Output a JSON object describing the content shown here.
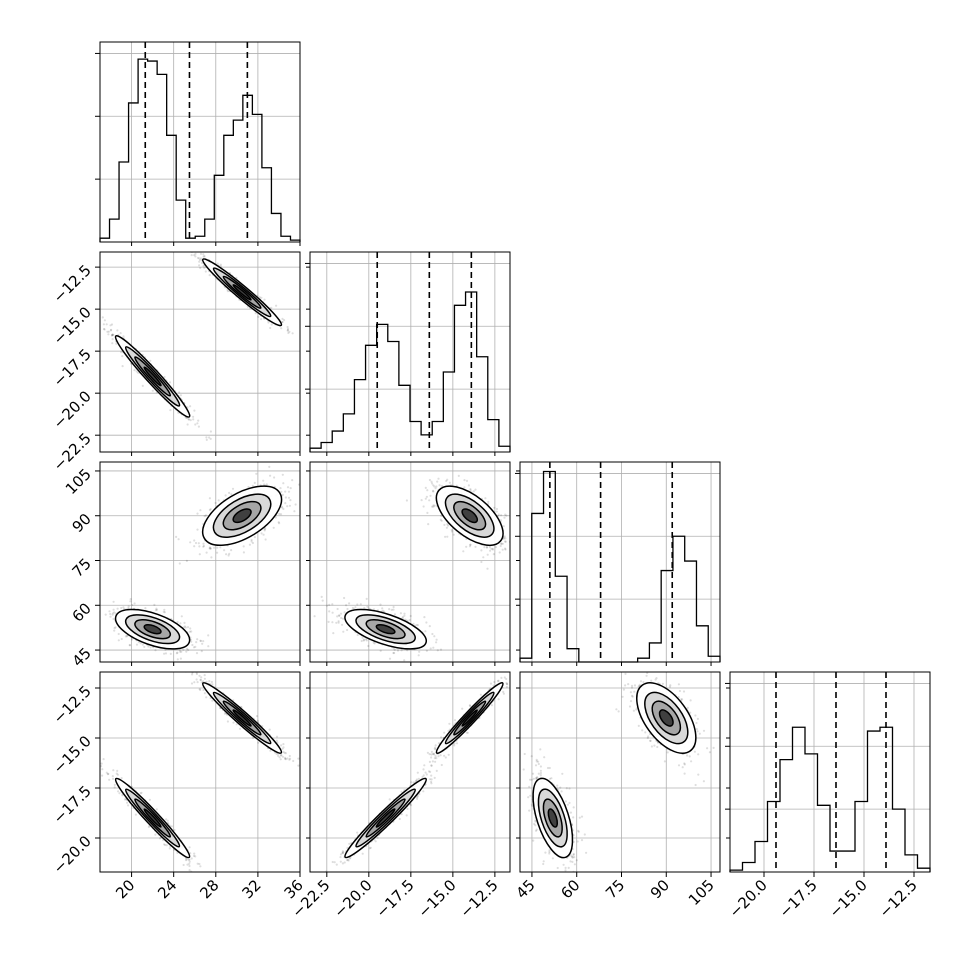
{
  "chart_data": {
    "type": "corner",
    "grid": true,
    "parameters": [
      {
        "range": [
          17,
          36
        ],
        "ticks": [
          20,
          24,
          28,
          32,
          36
        ],
        "tick_labels": [
          "20",
          "24",
          "28",
          "32",
          "36"
        ],
        "quantiles": [
          21.3,
          25.5,
          31.0
        ],
        "hist": [
          0.02,
          0.12,
          0.42,
          0.73,
          0.96,
          0.95,
          0.88,
          0.56,
          0.22,
          0.02,
          0.03,
          0.12,
          0.35,
          0.56,
          0.64,
          0.77,
          0.67,
          0.39,
          0.15,
          0.03,
          0.01
        ],
        "modes": [
          {
            "mean": 22.0,
            "sd": 1.6
          },
          {
            "mean": 30.5,
            "sd": 1.7
          }
        ]
      },
      {
        "range": [
          -23.5,
          -11.6
        ],
        "ticks": [
          -22.5,
          -20.0,
          -17.5,
          -15.0,
          -12.5
        ],
        "tick_labels": [
          "−22.5",
          "−20.0",
          "−17.5",
          "−15.0",
          "−12.5"
        ],
        "quantiles": [
          -19.5,
          -16.4,
          -13.9
        ],
        "hist": [
          0.02,
          0.05,
          0.11,
          0.2,
          0.38,
          0.56,
          0.67,
          0.58,
          0.35,
          0.16,
          0.09,
          0.16,
          0.42,
          0.77,
          0.84,
          0.5,
          0.17,
          0.03
        ],
        "modes": [
          {
            "mean": -19.0,
            "sd": 1.1
          },
          {
            "mean": -14.0,
            "sd": 0.9
          }
        ]
      },
      {
        "range": [
          41,
          108
        ],
        "ticks": [
          45,
          60,
          75,
          90,
          105
        ],
        "tick_labels": [
          "45",
          "60",
          "75",
          "90",
          "105"
        ],
        "quantiles": [
          51,
          68,
          92
        ],
        "hist": [
          0.02,
          0.78,
          1.0,
          0.45,
          0.07,
          0.0,
          0.0,
          0.0,
          0.0,
          0.0,
          0.02,
          0.1,
          0.48,
          0.66,
          0.53,
          0.19,
          0.03
        ],
        "modes": [
          {
            "mean": 52.0,
            "sd": 3.0
          },
          {
            "mean": 90.0,
            "sd": 4.5
          }
        ]
      },
      {
        "range": [
          -21.7,
          -11.7
        ],
        "ticks": [
          -20.0,
          -17.5,
          -15.0,
          -12.5
        ],
        "tick_labels": [
          "−20.0",
          "−17.5",
          "−15.0",
          "−12.5"
        ],
        "quantiles": [
          -19.4,
          -16.4,
          -13.9
        ],
        "hist": [
          0.01,
          0.05,
          0.16,
          0.37,
          0.59,
          0.76,
          0.62,
          0.35,
          0.11,
          0.11,
          0.37,
          0.74,
          0.76,
          0.33,
          0.09,
          0.02
        ],
        "modes": [
          {
            "mean": -19.0,
            "sd": 0.9
          },
          {
            "mean": -14.0,
            "sd": 0.8
          }
        ]
      }
    ],
    "pairs": [
      {
        "row": 1,
        "col": 0,
        "correlations": [
          -0.97,
          -0.97
        ]
      },
      {
        "row": 2,
        "col": 0,
        "correlations": [
          -0.55,
          0.55
        ]
      },
      {
        "row": 2,
        "col": 1,
        "correlations": [
          -0.6,
          -0.6
        ]
      },
      {
        "row": 3,
        "col": 0,
        "correlations": [
          -0.97,
          -0.97
        ]
      },
      {
        "row": 3,
        "col": 1,
        "correlations": [
          0.97,
          0.97
        ]
      },
      {
        "row": 3,
        "col": 2,
        "correlations": [
          -0.55,
          -0.55
        ]
      }
    ]
  }
}
